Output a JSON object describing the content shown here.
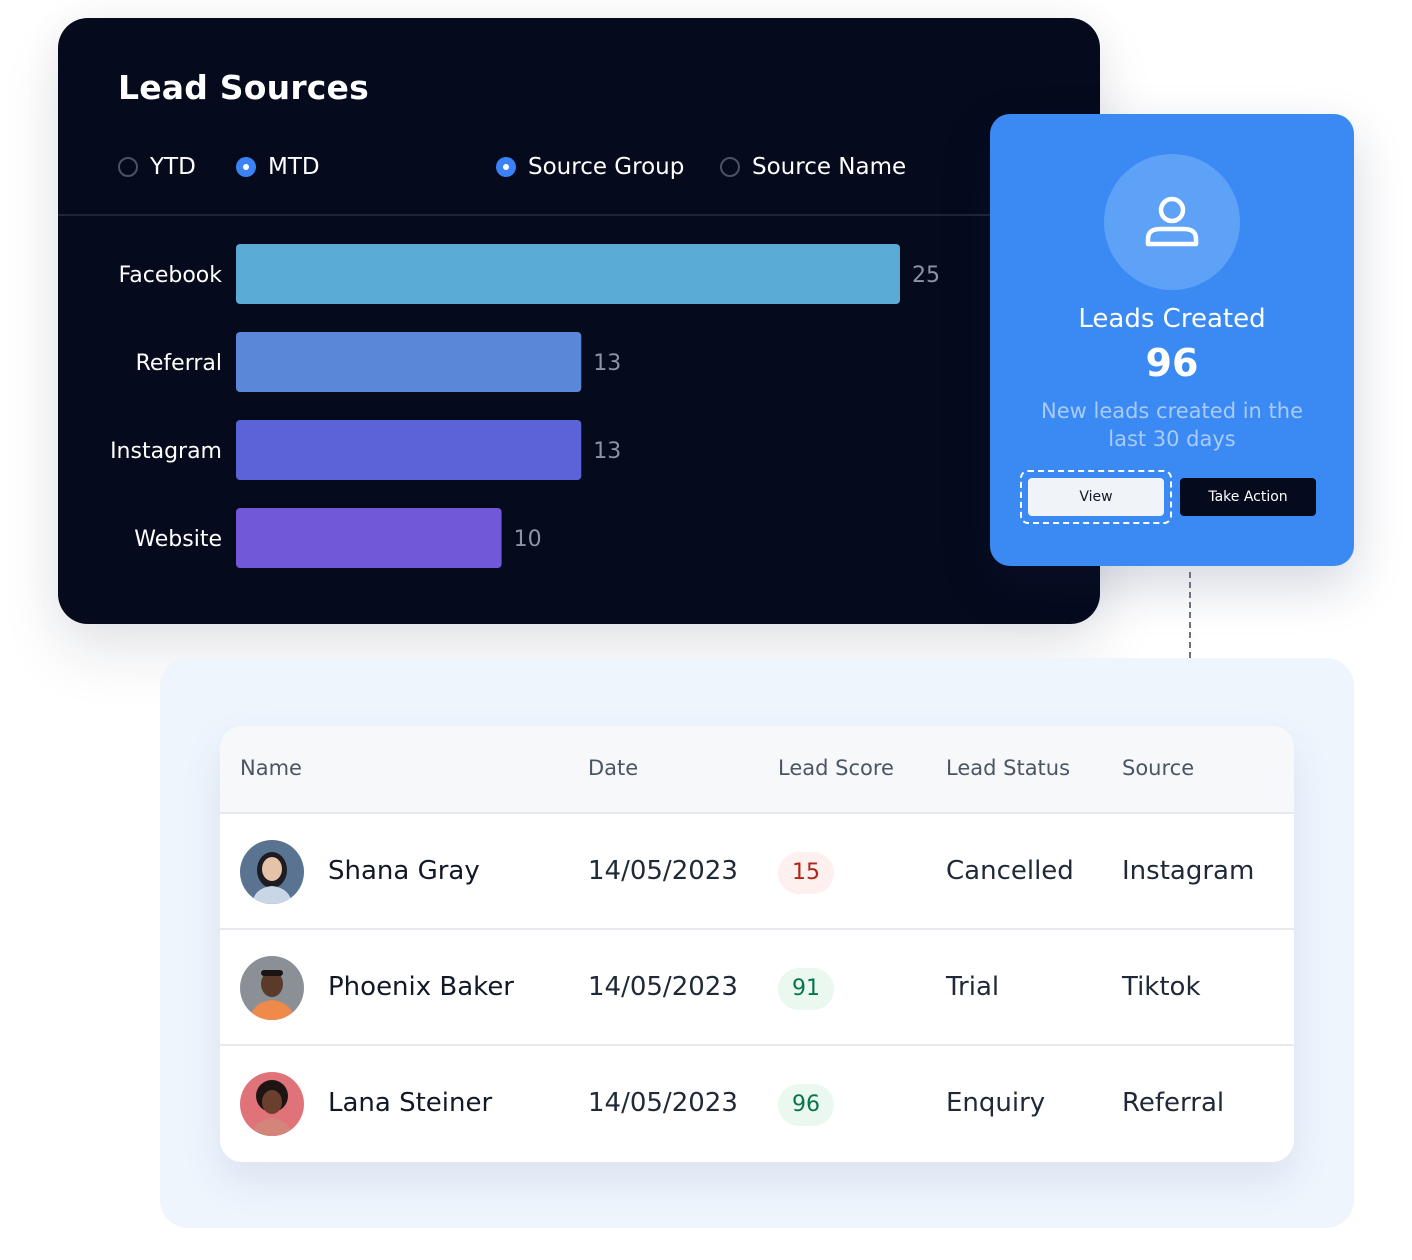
{
  "lead_sources": {
    "title": "Lead Sources",
    "period_options": [
      {
        "label": "YTD",
        "selected": false
      },
      {
        "label": "MTD",
        "selected": true
      }
    ],
    "grouping_options": [
      {
        "label": "Source Group",
        "selected": true
      },
      {
        "label": "Source Name",
        "selected": false
      }
    ]
  },
  "chart_data": {
    "type": "bar",
    "orientation": "horizontal",
    "title": "Lead Sources",
    "categories": [
      "Facebook",
      "Referral",
      "Instagram",
      "Website"
    ],
    "values": [
      25,
      13,
      13,
      10
    ],
    "value_labels": [
      "25",
      "13",
      "13",
      "10"
    ],
    "colors": [
      "#5aabd6",
      "#5b87d8",
      "#5b63d8",
      "#7158d8"
    ],
    "xlim": [
      0,
      25
    ],
    "grid": false,
    "legend": "none"
  },
  "leads_card": {
    "title": "Leads Created",
    "count": "96",
    "description": "New leads created in the last 30 days",
    "view_label": "View",
    "action_label": "Take Action",
    "icon": "user-icon"
  },
  "table": {
    "headers": {
      "name": "Name",
      "date": "Date",
      "score": "Lead Score",
      "status": "Lead Status",
      "source": "Source"
    },
    "rows": [
      {
        "name": "Shana Gray",
        "date": "14/05/2023",
        "score": "15",
        "score_level": "low",
        "status": "Cancelled",
        "source": "Instagram",
        "avatar_bg": "#5a7390"
      },
      {
        "name": "Phoenix Baker",
        "date": "14/05/2023",
        "score": "91",
        "score_level": "high",
        "status": "Trial",
        "source": "Tiktok",
        "avatar_bg": "#8a9096"
      },
      {
        "name": "Lana Steiner",
        "date": "14/05/2023",
        "score": "96",
        "score_level": "high",
        "status": "Enquiry",
        "source": "Referral",
        "avatar_bg": "#e0727a"
      }
    ]
  },
  "colors": {
    "panel_dark": "#050a1c",
    "card_blue": "#3b8af3",
    "radio_selected": "#3b82f6",
    "badge_low_bg": "#fdf0ee",
    "badge_low_text": "#b42318",
    "badge_high_bg": "#eaf8ef",
    "badge_high_text": "#067647"
  }
}
